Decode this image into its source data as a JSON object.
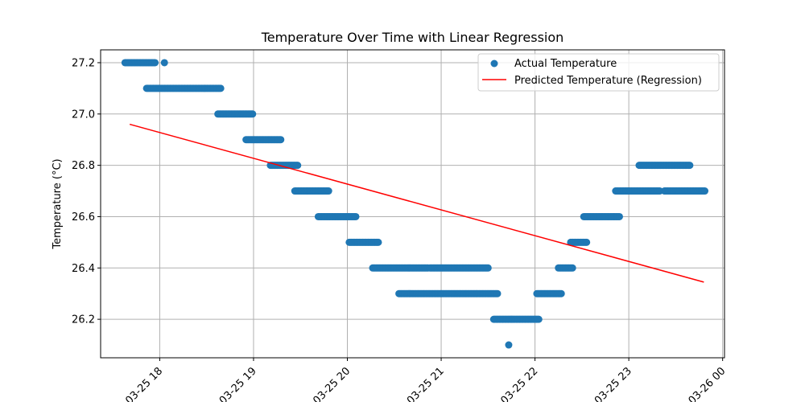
{
  "chart_data": {
    "type": "scatter",
    "title": "Temperature Over Time with Linear Regression",
    "xlabel": "",
    "ylabel": "Temperature (°C)",
    "grid": true,
    "legend_position": "top-right",
    "x_unit": "hours since 2025-03-25 00:00",
    "xlim": [
      17.37,
      24.02
    ],
    "ylim": [
      26.05,
      27.25
    ],
    "x_ticks": [
      {
        "value": 18,
        "label": "03-25 18"
      },
      {
        "value": 19,
        "label": "03-25 19"
      },
      {
        "value": 20,
        "label": "03-25 20"
      },
      {
        "value": 21,
        "label": "03-25 21"
      },
      {
        "value": 22,
        "label": "03-25 22"
      },
      {
        "value": 23,
        "label": "03-25 23"
      },
      {
        "value": 24,
        "label": "03-26 00"
      }
    ],
    "y_ticks": [
      {
        "value": 26.2,
        "label": "26.2"
      },
      {
        "value": 26.4,
        "label": "26.4"
      },
      {
        "value": 26.6,
        "label": "26.6"
      },
      {
        "value": 26.8,
        "label": "26.8"
      },
      {
        "value": 27.0,
        "label": "27.0"
      },
      {
        "value": 27.2,
        "label": "27.2"
      }
    ],
    "series": [
      {
        "name": "Actual Temperature",
        "kind": "scatter",
        "color": "#1f77b4",
        "segments": [
          {
            "x_start": 17.63,
            "x_end": 17.95,
            "y": 27.2
          },
          {
            "x_start": 18.05,
            "x_end": 18.05,
            "y": 27.2
          },
          {
            "x_start": 17.86,
            "x_end": 18.65,
            "y": 27.1
          },
          {
            "x_start": 18.62,
            "x_end": 18.99,
            "y": 27.0
          },
          {
            "x_start": 18.92,
            "x_end": 19.29,
            "y": 26.9
          },
          {
            "x_start": 19.18,
            "x_end": 19.47,
            "y": 26.8
          },
          {
            "x_start": 19.44,
            "x_end": 19.8,
            "y": 26.7
          },
          {
            "x_start": 19.69,
            "x_end": 20.09,
            "y": 26.6
          },
          {
            "x_start": 20.02,
            "x_end": 20.33,
            "y": 26.5
          },
          {
            "x_start": 20.27,
            "x_end": 20.86,
            "y": 26.4
          },
          {
            "x_start": 20.55,
            "x_end": 21.37,
            "y": 26.3
          },
          {
            "x_start": 20.88,
            "x_end": 21.5,
            "y": 26.4
          },
          {
            "x_start": 21.38,
            "x_end": 21.6,
            "y": 26.3
          },
          {
            "x_start": 21.56,
            "x_end": 22.04,
            "y": 26.2
          },
          {
            "x_start": 21.72,
            "x_end": 21.72,
            "y": 26.1
          },
          {
            "x_start": 22.02,
            "x_end": 22.28,
            "y": 26.3
          },
          {
            "x_start": 22.25,
            "x_end": 22.4,
            "y": 26.4
          },
          {
            "x_start": 22.38,
            "x_end": 22.55,
            "y": 26.5
          },
          {
            "x_start": 22.52,
            "x_end": 22.9,
            "y": 26.6
          },
          {
            "x_start": 22.86,
            "x_end": 23.33,
            "y": 26.7
          },
          {
            "x_start": 23.11,
            "x_end": 23.65,
            "y": 26.8
          },
          {
            "x_start": 23.38,
            "x_end": 23.81,
            "y": 26.7
          }
        ]
      },
      {
        "name": "Predicted Temperature (Regression)",
        "kind": "line",
        "color": "#ff0000",
        "points": [
          {
            "x": 17.68,
            "y": 26.96
          },
          {
            "x": 23.8,
            "y": 26.345
          }
        ]
      }
    ]
  }
}
